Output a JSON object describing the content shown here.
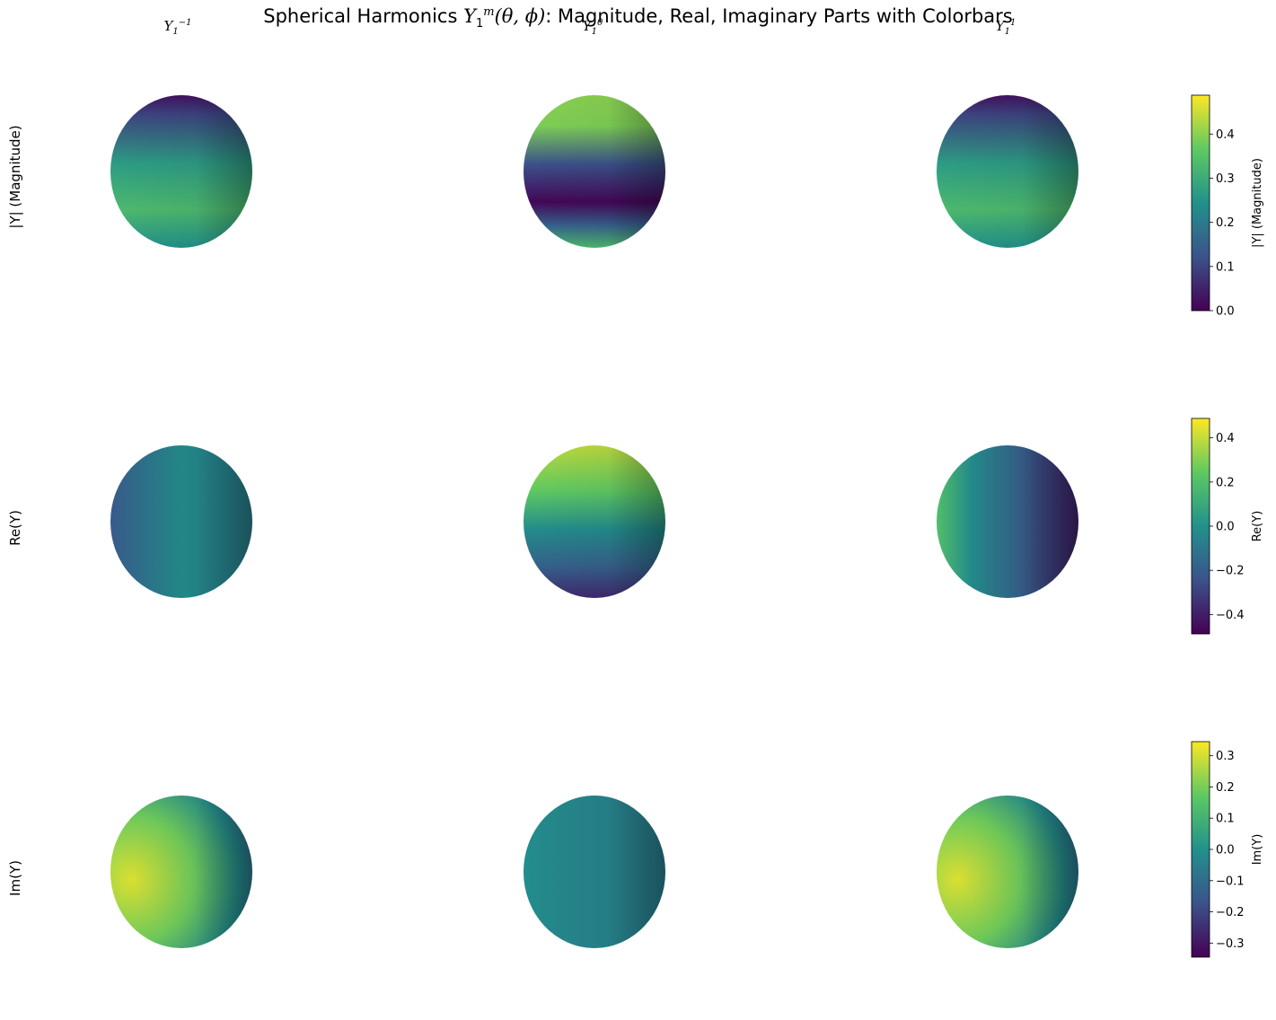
{
  "title_parts": {
    "prefix": "Spherical Harmonics ",
    "symbol": "Y",
    "sub": "1",
    "sup": "m",
    "args": "(θ, ϕ)",
    "suffix": ": Magnitude, Real, Imaginary Parts with Colorbars"
  },
  "columns": [
    {
      "symbol": "Y",
      "sub": "1",
      "sup": "−1"
    },
    {
      "symbol": "Y",
      "sub": "1",
      "sup": "0"
    },
    {
      "symbol": "Y",
      "sub": "1",
      "sup": "1"
    }
  ],
  "rows": [
    "|Y| (Magnitude)",
    "Re(Y)",
    "Im(Y)"
  ],
  "colormap": "viridis",
  "colormap_stops": [
    "#440154",
    "#3b528b",
    "#21918c",
    "#5ec962",
    "#fde725"
  ],
  "chart_data": {
    "type": "heatmap",
    "description_of_marks": "3x3 grid of shaded spheres; each row shares a colorbar",
    "colorbars": [
      {
        "label": "|Y| (Magnitude)",
        "range": [
          0.0,
          0.488
        ],
        "ticks": [
          0.0,
          0.1,
          0.2,
          0.3,
          0.4
        ],
        "tick_labels": [
          "0.0",
          "0.1",
          "0.2",
          "0.3",
          "0.4"
        ]
      },
      {
        "label": "Re(Y)",
        "range": [
          -0.488,
          0.488
        ],
        "ticks": [
          -0.4,
          -0.2,
          0.0,
          0.2,
          0.4
        ],
        "tick_labels": [
          "−0.4",
          "−0.2",
          "0.0",
          "0.2",
          "0.4"
        ]
      },
      {
        "label": "Im(Y)",
        "range": [
          -0.345,
          0.345
        ],
        "ticks": [
          -0.3,
          -0.2,
          -0.1,
          0.0,
          0.1,
          0.2,
          0.3
        ],
        "tick_labels": [
          "−0.3",
          "−0.2",
          "−0.1",
          "0.0",
          "0.1",
          "0.2",
          "0.3"
        ]
      }
    ],
    "spheres": [
      {
        "row": 0,
        "col": 0,
        "min_value": 0.0,
        "max_value": 0.345
      },
      {
        "row": 0,
        "col": 1,
        "min_value": 0.0,
        "max_value": 0.488
      },
      {
        "row": 0,
        "col": 2,
        "min_value": 0.0,
        "max_value": 0.345
      },
      {
        "row": 1,
        "col": 0,
        "min_value": -0.244,
        "max_value": 0.244
      },
      {
        "row": 1,
        "col": 1,
        "min_value": -0.488,
        "max_value": 0.488
      },
      {
        "row": 1,
        "col": 2,
        "min_value": -0.244,
        "max_value": 0.244
      },
      {
        "row": 2,
        "col": 0,
        "min_value": -0.345,
        "max_value": 0.345
      },
      {
        "row": 2,
        "col": 1,
        "min_value": 0.0,
        "max_value": 0.0
      },
      {
        "row": 2,
        "col": 2,
        "min_value": -0.345,
        "max_value": 0.345
      }
    ]
  }
}
